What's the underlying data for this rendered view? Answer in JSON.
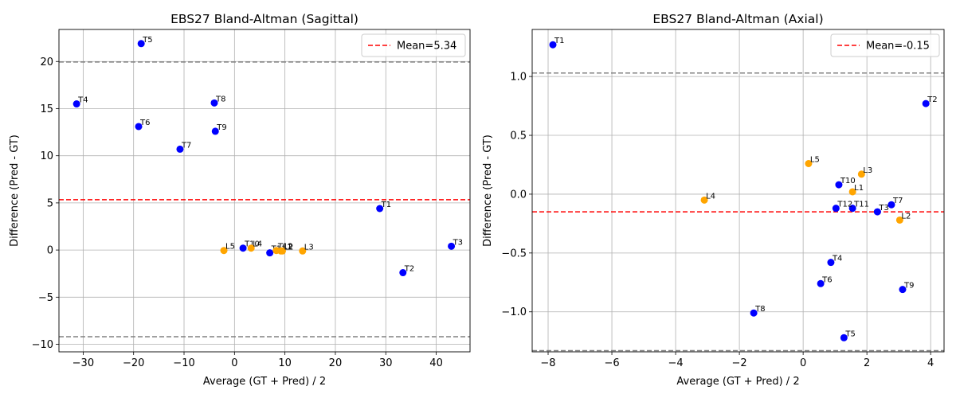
{
  "chart_data": [
    {
      "type": "scatter",
      "title": "EBS27 Bland-Altman (Sagittal)",
      "xlabel": "Average (GT + Pred) / 2",
      "ylabel": "Difference (Pred - GT)",
      "xlim": [
        -34.8,
        46.7
      ],
      "ylim": [
        -10.8,
        23.4
      ],
      "xticks": [
        -30,
        -20,
        -10,
        0,
        10,
        20,
        30,
        40
      ],
      "yticks": [
        -10,
        -5,
        0,
        5,
        10,
        15,
        20
      ],
      "grid": true,
      "legend_position": "upper right",
      "legend_label": "Mean=5.34",
      "mean_line": 5.34,
      "limit_lines": [
        19.95,
        -9.2
      ],
      "colors": {
        "thoracic": "#0000ff",
        "lumbar": "#ffa500",
        "mean_line": "#ff0000",
        "limit_line": "#808080"
      },
      "points": [
        {
          "label": "T1",
          "x": 28.8,
          "y": 4.4,
          "group": "thoracic"
        },
        {
          "label": "T2",
          "x": 33.4,
          "y": -2.4,
          "group": "thoracic"
        },
        {
          "label": "T3",
          "x": 43.0,
          "y": 0.4,
          "group": "thoracic"
        },
        {
          "label": "T4",
          "x": -31.3,
          "y": 15.5,
          "group": "thoracic"
        },
        {
          "label": "T5",
          "x": -18.5,
          "y": 21.9,
          "group": "thoracic"
        },
        {
          "label": "T6",
          "x": -19.0,
          "y": 13.1,
          "group": "thoracic"
        },
        {
          "label": "T7",
          "x": -10.8,
          "y": 10.7,
          "group": "thoracic"
        },
        {
          "label": "T8",
          "x": -4.0,
          "y": 15.6,
          "group": "thoracic"
        },
        {
          "label": "T9",
          "x": -3.8,
          "y": 12.6,
          "group": "thoracic"
        },
        {
          "label": "T10",
          "x": 1.7,
          "y": 0.2,
          "group": "thoracic"
        },
        {
          "label": "T11",
          "x": 7.0,
          "y": -0.3,
          "group": "thoracic"
        },
        {
          "label": "T12",
          "x": 8.3,
          "y": -0.05,
          "group": "lumbar"
        },
        {
          "label": "L1",
          "x": 9.2,
          "y": -0.1,
          "group": "lumbar"
        },
        {
          "label": "L2",
          "x": 9.5,
          "y": -0.1,
          "group": "lumbar"
        },
        {
          "label": "L3",
          "x": 13.5,
          "y": -0.1,
          "group": "lumbar"
        },
        {
          "label": "L4",
          "x": 3.3,
          "y": 0.2,
          "group": "lumbar"
        },
        {
          "label": "L5",
          "x": -2.1,
          "y": -0.05,
          "group": "lumbar"
        }
      ]
    },
    {
      "type": "scatter",
      "title": "EBS27 Bland-Altman (Axial)",
      "xlabel": "Average (GT + Pred) / 2",
      "ylabel": "Difference (Pred - GT)",
      "xlim": [
        -8.5,
        4.42
      ],
      "ylim": [
        -1.34,
        1.4
      ],
      "xticks": [
        -8,
        -6,
        -4,
        -2,
        0,
        2,
        4
      ],
      "yticks": [
        -1.0,
        -0.5,
        0.0,
        0.5,
        1.0
      ],
      "ytick_labels": [
        "−1.0",
        "−0.5",
        "0.0",
        "0.5",
        "1.0"
      ],
      "grid": true,
      "legend_position": "upper right",
      "legend_label": "Mean=-0.15",
      "mean_line": -0.15,
      "limit_lines": [
        1.03,
        -1.33
      ],
      "colors": {
        "thoracic": "#0000ff",
        "lumbar": "#ffa500",
        "mean_line": "#ff0000",
        "limit_line": "#808080"
      },
      "points": [
        {
          "label": "T1",
          "x": -7.85,
          "y": 1.27,
          "group": "thoracic"
        },
        {
          "label": "T2",
          "x": 3.85,
          "y": 0.77,
          "group": "thoracic"
        },
        {
          "label": "T3",
          "x": 2.33,
          "y": -0.15,
          "group": "thoracic"
        },
        {
          "label": "T4",
          "x": 0.87,
          "y": -0.58,
          "group": "thoracic"
        },
        {
          "label": "T5",
          "x": 1.28,
          "y": -1.22,
          "group": "thoracic"
        },
        {
          "label": "T6",
          "x": 0.55,
          "y": -0.76,
          "group": "thoracic"
        },
        {
          "label": "T7",
          "x": 2.77,
          "y": -0.09,
          "group": "thoracic"
        },
        {
          "label": "T8",
          "x": -1.55,
          "y": -1.01,
          "group": "thoracic"
        },
        {
          "label": "T9",
          "x": 3.12,
          "y": -0.81,
          "group": "thoracic"
        },
        {
          "label": "T10",
          "x": 1.12,
          "y": 0.08,
          "group": "thoracic"
        },
        {
          "label": "T11",
          "x": 1.55,
          "y": -0.12,
          "group": "thoracic"
        },
        {
          "label": "T12",
          "x": 1.03,
          "y": -0.12,
          "group": "thoracic"
        },
        {
          "label": "L1",
          "x": 1.55,
          "y": 0.02,
          "group": "lumbar"
        },
        {
          "label": "L2",
          "x": 3.03,
          "y": -0.22,
          "group": "lumbar"
        },
        {
          "label": "L3",
          "x": 1.83,
          "y": 0.17,
          "group": "lumbar"
        },
        {
          "label": "L4",
          "x": -3.1,
          "y": -0.05,
          "group": "lumbar"
        },
        {
          "label": "L5",
          "x": 0.17,
          "y": 0.26,
          "group": "lumbar"
        }
      ]
    }
  ]
}
